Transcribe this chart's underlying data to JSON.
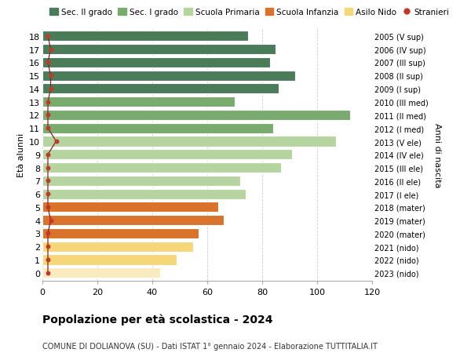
{
  "ages": [
    18,
    17,
    16,
    15,
    14,
    13,
    12,
    11,
    10,
    9,
    8,
    7,
    6,
    5,
    4,
    3,
    2,
    1,
    0
  ],
  "values": [
    75,
    85,
    83,
    92,
    86,
    70,
    112,
    84,
    107,
    91,
    87,
    72,
    74,
    64,
    66,
    57,
    55,
    49,
    43
  ],
  "stranieri": [
    2,
    3,
    2,
    3,
    3,
    2,
    2,
    2,
    5,
    2,
    2,
    2,
    2,
    2,
    3,
    2,
    2,
    2,
    2
  ],
  "bar_colors": [
    "#4a7c59",
    "#4a7c59",
    "#4a7c59",
    "#4a7c59",
    "#4a7c59",
    "#7aab6e",
    "#7aab6e",
    "#7aab6e",
    "#b5d4a0",
    "#b5d4a0",
    "#b5d4a0",
    "#b5d4a0",
    "#b5d4a0",
    "#d9722a",
    "#d9722a",
    "#d9722a",
    "#f5d77a",
    "#f5d77a",
    "#faeac0"
  ],
  "right_labels": [
    "2005 (V sup)",
    "2006 (IV sup)",
    "2007 (III sup)",
    "2008 (II sup)",
    "2009 (I sup)",
    "2010 (III med)",
    "2011 (II med)",
    "2012 (I med)",
    "2013 (V ele)",
    "2014 (IV ele)",
    "2015 (III ele)",
    "2016 (II ele)",
    "2017 (I ele)",
    "2018 (mater)",
    "2019 (mater)",
    "2020 (mater)",
    "2021 (nido)",
    "2022 (nido)",
    "2023 (nido)"
  ],
  "legend_labels": [
    "Sec. II grado",
    "Sec. I grado",
    "Scuola Primaria",
    "Scuola Infanzia",
    "Asilo Nido",
    "Stranieri"
  ],
  "legend_colors": [
    "#4a7c59",
    "#7aab6e",
    "#b5d4a0",
    "#d9722a",
    "#f5d77a",
    "#c0392b"
  ],
  "title": "Popolazione per età scolastica - 2024",
  "subtitle": "COMUNE DI DOLIANOVA (SU) - Dati ISTAT 1° gennaio 2024 - Elaborazione TUTTITALIA.IT",
  "ylabel_left": "Età alunni",
  "ylabel_right": "Anni di nascita",
  "xlim": [
    0,
    120
  ],
  "xticks": [
    0,
    20,
    40,
    60,
    80,
    100,
    120
  ],
  "background_color": "#ffffff",
  "grid_color": "#cccccc",
  "bar_height": 0.78,
  "stranieri_color": "#c0392b",
  "stranieri_line_color": "#8b2020"
}
